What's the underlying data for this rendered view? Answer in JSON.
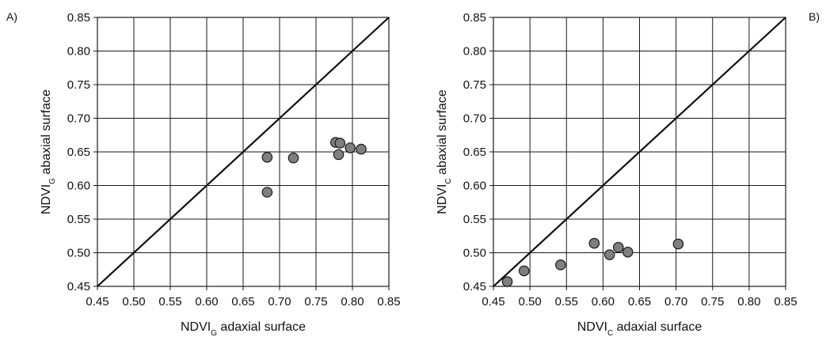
{
  "chart_data": [
    {
      "type": "scatter",
      "panel_label": "A)",
      "title": "",
      "xlabel": {
        "main": "NDVI",
        "sub": "G",
        "rest": " adaxial surface"
      },
      "ylabel": {
        "main": "NDVI",
        "sub": "G",
        "rest": " abaxial surface"
      },
      "xlim": [
        0.45,
        0.85
      ],
      "ylim": [
        0.45,
        0.85
      ],
      "ticks": [
        "0.45",
        "0.50",
        "0.55",
        "0.60",
        "0.65",
        "0.70",
        "0.75",
        "0.80",
        "0.85"
      ],
      "grid": true,
      "reference_line": "y = x",
      "series": [
        {
          "points": [
            {
              "x": 0.683,
              "y": 0.642
            },
            {
              "x": 0.683,
              "y": 0.59
            },
            {
              "x": 0.719,
              "y": 0.641
            },
            {
              "x": 0.777,
              "y": 0.664
            },
            {
              "x": 0.783,
              "y": 0.663
            },
            {
              "x": 0.781,
              "y": 0.646
            },
            {
              "x": 0.797,
              "y": 0.656
            },
            {
              "x": 0.812,
              "y": 0.654
            }
          ]
        }
      ],
      "marker_fill": "#7f7f7f",
      "marker_stroke": "#1a1a1a"
    },
    {
      "type": "scatter",
      "panel_label": "B)",
      "title": "",
      "xlabel": {
        "main": "NDVI",
        "sub": "C",
        "rest": " adaxial surface"
      },
      "ylabel": {
        "main": "NDVI",
        "sub": "C",
        "rest": " abaxial surface"
      },
      "xlim": [
        0.45,
        0.85
      ],
      "ylim": [
        0.45,
        0.85
      ],
      "ticks": [
        "0.45",
        "0.50",
        "0.55",
        "0.60",
        "0.65",
        "0.70",
        "0.75",
        "0.80",
        "0.85"
      ],
      "grid": true,
      "reference_line": "y = x",
      "series": [
        {
          "points": [
            {
              "x": 0.469,
              "y": 0.457
            },
            {
              "x": 0.492,
              "y": 0.473
            },
            {
              "x": 0.542,
              "y": 0.482
            },
            {
              "x": 0.588,
              "y": 0.514
            },
            {
              "x": 0.609,
              "y": 0.497
            },
            {
              "x": 0.621,
              "y": 0.508
            },
            {
              "x": 0.634,
              "y": 0.501
            },
            {
              "x": 0.703,
              "y": 0.513
            }
          ]
        }
      ],
      "marker_fill": "#7f7f7f",
      "marker_stroke": "#1a1a1a"
    }
  ]
}
